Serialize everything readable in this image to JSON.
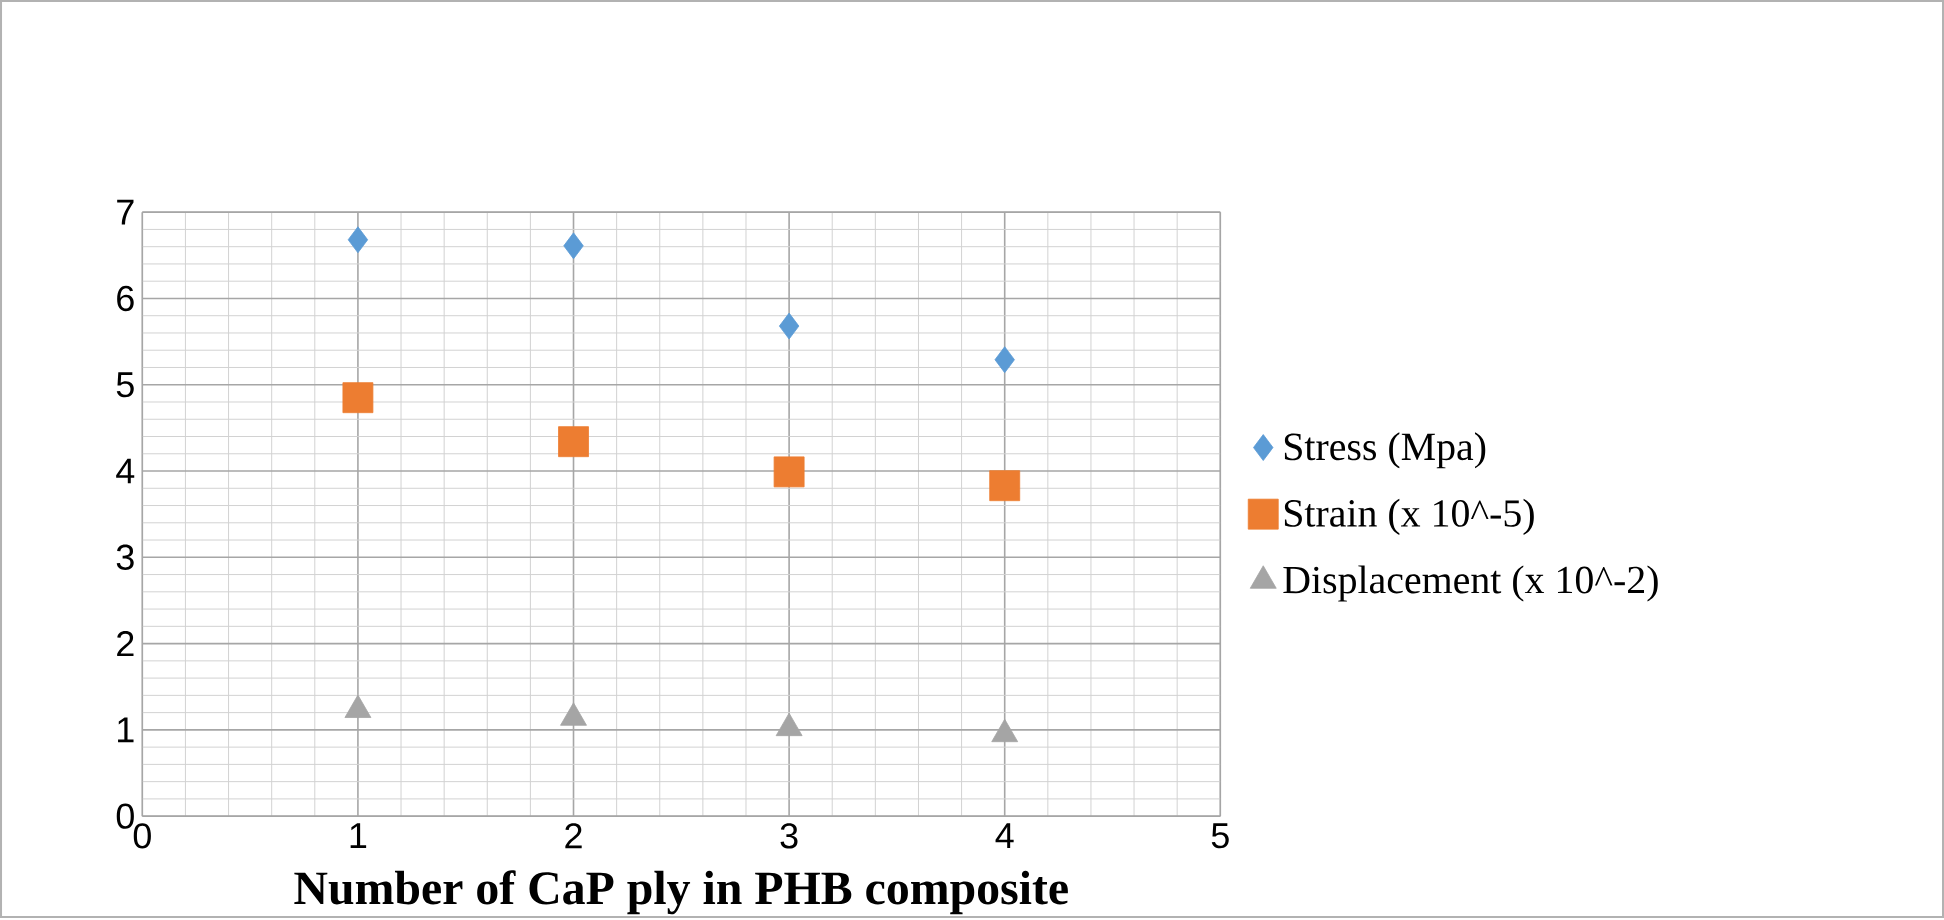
{
  "chart_data": {
    "type": "scatter",
    "xlabel": "Number of CaP ply in PHB composite",
    "x": [
      1,
      2,
      3,
      4
    ],
    "series": [
      {
        "name": "Stress (Mpa)",
        "color": "#5b9bd5",
        "marker": "diamond",
        "values": [
          6.68,
          6.61,
          5.68,
          5.29
        ]
      },
      {
        "name": "Strain (x 10^-5)",
        "color": "#ed7d31",
        "marker": "square",
        "values": [
          4.85,
          4.34,
          3.99,
          3.83
        ]
      },
      {
        "name": "Displacement (x 10^-2)",
        "color": "#a5a5a5",
        "marker": "triangle",
        "values": [
          1.23,
          1.14,
          1.02,
          0.95
        ]
      }
    ],
    "xlim": [
      0,
      5
    ],
    "ylim": [
      0,
      7
    ],
    "xticks": [
      0,
      1,
      2,
      3,
      4,
      5
    ],
    "yticks": [
      0,
      1,
      2,
      3,
      4,
      5,
      6,
      7
    ],
    "grid": true,
    "legend": "right"
  }
}
